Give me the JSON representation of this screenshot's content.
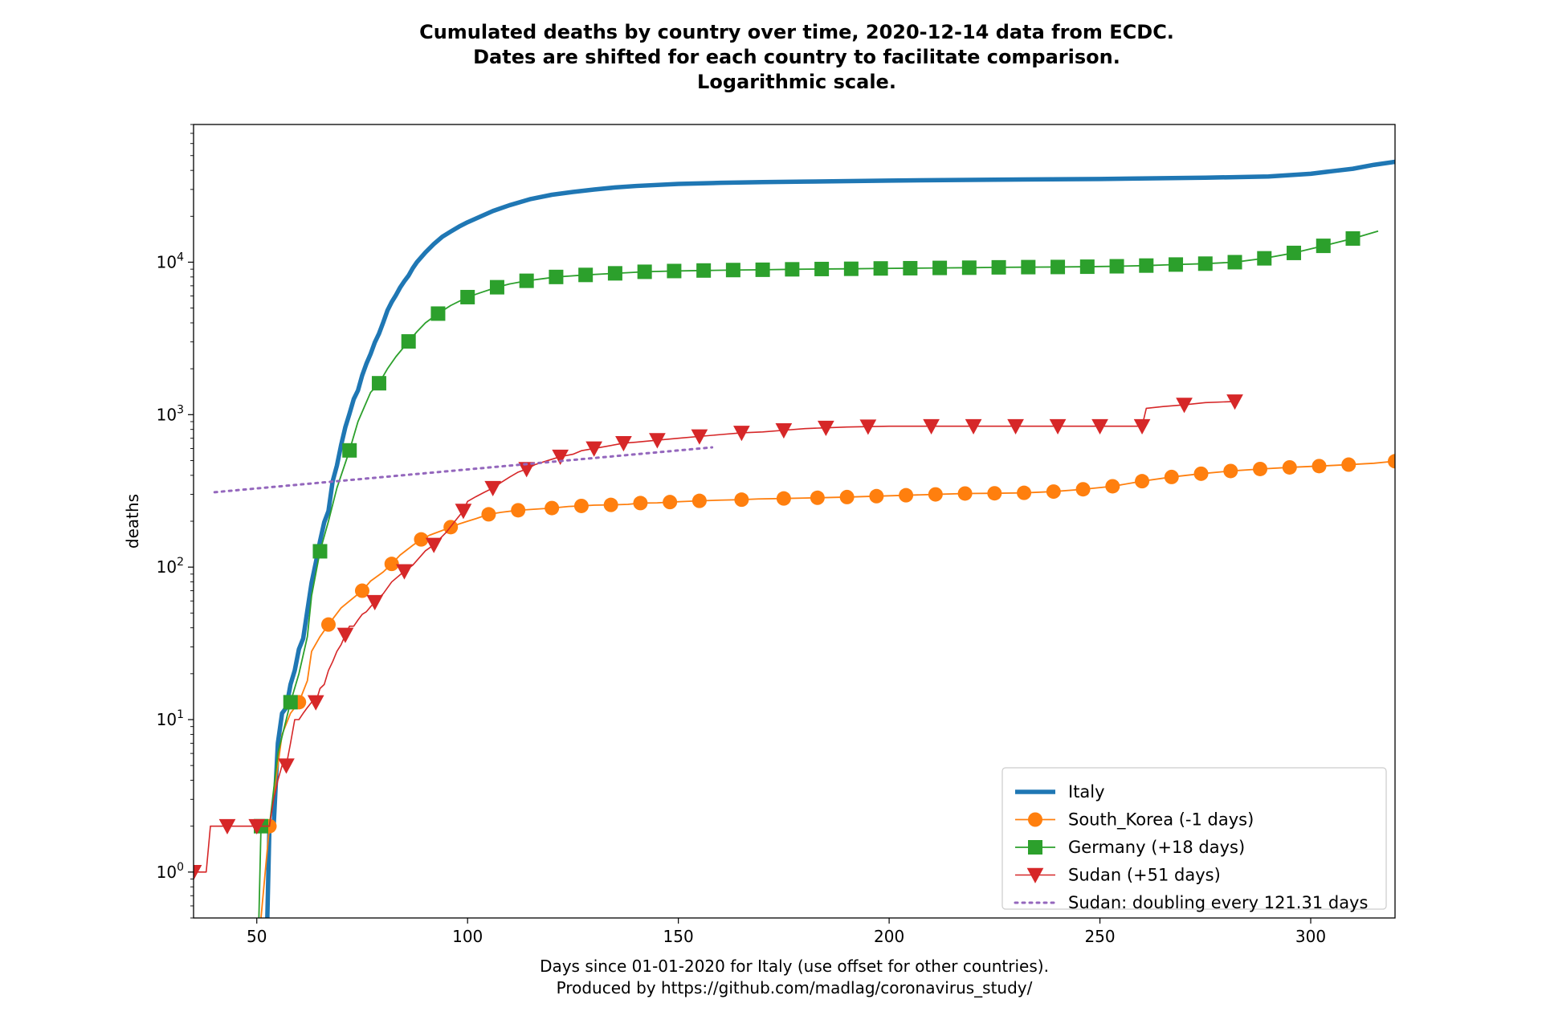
{
  "chart_data": {
    "type": "line",
    "title_lines": [
      "Cumulated deaths by country over time, 2020-12-14 data from ECDC.",
      "Dates are shifted for each country to facilitate comparison.",
      "Logarithmic scale."
    ],
    "xlabel_lines": [
      "Days since 01-01-2020 for Italy (use offset for other countries).",
      "Produced by https://github.com/madlag/coronavirus_study/"
    ],
    "ylabel": "deaths",
    "yscale": "log",
    "xlim": [
      35,
      320
    ],
    "ylim": [
      0.5,
      80000
    ],
    "x_ticks": [
      50,
      100,
      150,
      200,
      250,
      300
    ],
    "y_ticks": [
      {
        "value": 1,
        "base": "10",
        "exp": "0"
      },
      {
        "value": 10,
        "base": "10",
        "exp": "1"
      },
      {
        "value": 100,
        "base": "10",
        "exp": "2"
      },
      {
        "value": 1000,
        "base": "10",
        "exp": "3"
      },
      {
        "value": 10000,
        "base": "10",
        "exp": "4"
      }
    ],
    "legend_position": "lower-right",
    "series": [
      {
        "name": "Italy",
        "color": "#1f77b4",
        "marker": "none",
        "style": "solid-thick",
        "x": [
          52.5,
          53,
          54,
          55,
          56,
          57,
          58,
          59,
          60,
          61,
          62,
          63,
          64,
          65,
          66,
          67,
          68,
          69,
          70,
          71,
          72,
          73,
          74,
          75,
          76,
          77,
          78,
          79,
          80,
          81,
          82,
          83,
          84,
          85,
          86,
          87,
          88,
          89,
          90,
          92,
          94,
          96,
          98,
          100,
          103,
          106,
          110,
          115,
          120,
          125,
          130,
          135,
          140,
          150,
          160,
          170,
          180,
          200,
          225,
          250,
          275,
          290,
          300,
          305,
          310,
          315,
          320
        ],
        "y": [
          0.5,
          2,
          2,
          7,
          11,
          12,
          17,
          21,
          29,
          34,
          52,
          79,
          107,
          148,
          197,
          233,
          366,
          463,
          631,
          827,
          1016,
          1266,
          1441,
          1809,
          2158,
          2503,
          2978,
          3405,
          4032,
          4825,
          5476,
          6077,
          6820,
          7503,
          8165,
          9134,
          10023,
          10779,
          11591,
          13155,
          14681,
          15887,
          17127,
          18279,
          19899,
          21645,
          23660,
          25969,
          27682,
          28884,
          29958,
          30911,
          31610,
          32616,
          33142,
          33530,
          33756,
          34301,
          34750,
          35129,
          35800,
          36500,
          38000,
          39500,
          41000,
          43500,
          45500
        ]
      },
      {
        "name": "South_Korea (-1 days)",
        "color": "#ff7f0e",
        "marker": "circle",
        "style": "solid",
        "x": [
          51,
          53,
          55,
          56,
          58,
          60,
          62,
          63,
          65,
          67,
          70,
          72,
          75,
          77,
          80,
          82,
          84,
          87,
          89,
          91,
          94,
          96,
          98,
          100,
          102,
          105,
          108,
          112,
          116,
          120,
          124,
          127,
          130,
          134,
          138,
          141,
          145,
          148,
          152,
          155,
          160,
          165,
          169,
          175,
          180,
          183,
          190,
          197,
          204,
          211,
          218,
          225,
          232,
          239,
          246,
          253,
          260,
          267,
          274,
          281,
          288,
          295,
          302,
          309,
          315,
          320
        ],
        "y": [
          0.5,
          2,
          5,
          8,
          11,
          13,
          18,
          28,
          35,
          42,
          54,
          60,
          70,
          81,
          93,
          105,
          120,
          139,
          152,
          162,
          174,
          183,
          192,
          200,
          208,
          222,
          229,
          236,
          240,
          244,
          250,
          252,
          255,
          256,
          258,
          263,
          264,
          267,
          270,
          272,
          275,
          277,
          280,
          282,
          284,
          285,
          288,
          292,
          296,
          300,
          304,
          305,
          307,
          313,
          324,
          339,
          366,
          390,
          410,
          427,
          440,
          451,
          460,
          470,
          480,
          495
        ]
      },
      {
        "name": "Germany (+18 days)",
        "color": "#2ca02c",
        "marker": "square",
        "style": "solid",
        "x": [
          50.5,
          51,
          53,
          55,
          58,
          60,
          62,
          63,
          65,
          67,
          69,
          72,
          74,
          77,
          79,
          81,
          83,
          86,
          88,
          90,
          93,
          96,
          100,
          103,
          107,
          110,
          114,
          118,
          121,
          128,
          135,
          142,
          149,
          156,
          163,
          170,
          177,
          184,
          191,
          198,
          205,
          212,
          219,
          226,
          233,
          240,
          247,
          254,
          261,
          268,
          275,
          282,
          289,
          296,
          303,
          310,
          316
        ],
        "y": [
          0.5,
          2,
          2,
          6,
          13,
          20,
          35,
          65,
          127,
          200,
          330,
          583,
          900,
          1400,
          1607,
          2000,
          2400,
          3022,
          3500,
          4000,
          4600,
          5200,
          5900,
          6300,
          6850,
          7200,
          7550,
          7800,
          8000,
          8250,
          8450,
          8650,
          8750,
          8820,
          8880,
          8920,
          8980,
          9020,
          9050,
          9100,
          9130,
          9170,
          9200,
          9250,
          9280,
          9300,
          9340,
          9400,
          9500,
          9650,
          9780,
          10000,
          10600,
          11500,
          12800,
          14300,
          16000
        ]
      },
      {
        "name": "Sudan (+51 days)",
        "color": "#d62728",
        "marker": "triangle-down",
        "style": "solid-thin",
        "x": [
          35,
          37,
          38,
          39,
          40,
          41,
          43,
          45,
          47,
          49,
          50,
          51,
          52,
          53,
          54,
          55,
          56,
          57,
          58,
          59,
          60,
          61,
          62,
          63,
          64,
          65,
          66,
          67,
          68,
          69,
          70,
          71,
          72,
          73,
          74,
          75,
          76,
          77,
          78,
          80,
          82,
          85,
          87,
          90,
          92,
          95,
          97,
          99,
          100,
          102,
          104,
          106,
          108,
          110,
          112,
          114,
          116,
          118,
          120,
          122,
          125,
          127,
          130,
          133,
          137,
          140,
          145,
          150,
          155,
          160,
          165,
          170,
          175,
          180,
          185,
          190,
          195,
          200,
          210,
          220,
          230,
          240,
          250,
          255,
          260,
          261,
          265,
          270,
          275,
          282
        ],
        "y": [
          1,
          1,
          1,
          2,
          2,
          2,
          2,
          2,
          2,
          2,
          2,
          2,
          2,
          2,
          3,
          4,
          5,
          5,
          7,
          10,
          10,
          11,
          12,
          13,
          13,
          16,
          17,
          21,
          24,
          28,
          31,
          36,
          41,
          41,
          45,
          49,
          51,
          55,
          59,
          67,
          80,
          94,
          103,
          128,
          140,
          170,
          200,
          234,
          270,
          290,
          310,
          330,
          360,
          390,
          420,
          440,
          470,
          490,
          510,
          530,
          550,
          580,
          600,
          620,
          650,
          660,
          680,
          700,
          720,
          740,
          760,
          770,
          790,
          810,
          820,
          830,
          835,
          840,
          840,
          840,
          840,
          840,
          840,
          840,
          840,
          1100,
          1130,
          1160,
          1200,
          1220
        ]
      },
      {
        "name": "Sudan: doubling every 121.31 days",
        "color": "#9467bd",
        "marker": "none",
        "style": "dotted",
        "x": [
          40,
          158
        ],
        "y": [
          310,
          610
        ]
      }
    ]
  }
}
